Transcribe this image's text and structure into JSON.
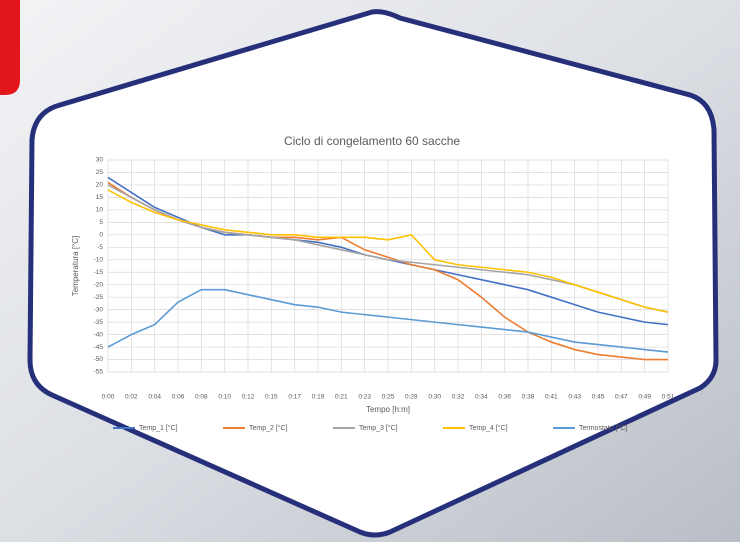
{
  "chart_data": {
    "type": "line",
    "title": "Ciclo di congelamento 60 sacche",
    "x_label": "Tempo [h:m]",
    "y_label": "Temperatura [°C]",
    "categories": [
      "0:00",
      "0:02",
      "0:04",
      "0:06",
      "0:08",
      "0:10",
      "0:12",
      "0:15",
      "0:17",
      "0:19",
      "0:21",
      "0:23",
      "0:25",
      "0:28",
      "0:30",
      "0:32",
      "0:34",
      "0:36",
      "0:38",
      "0:41",
      "0:43",
      "0:45",
      "0:47",
      "0:49",
      "0:51"
    ],
    "series": [
      {
        "name": "Temp_1 [°C]",
        "color": "#4472c4",
        "values": [
          23,
          17,
          11,
          7,
          3,
          0,
          0,
          -1,
          -2,
          -3,
          -5,
          -8,
          -10,
          -12,
          -14,
          -16,
          -18,
          -20,
          -22,
          -25,
          -28,
          -31,
          -33,
          -35,
          -36
        ]
      },
      {
        "name": "Temp_2 [°C]",
        "color": "#ed7d31",
        "values": [
          21,
          15,
          10,
          6,
          3,
          1,
          0,
          -1,
          -1,
          -2,
          -1,
          -6,
          -9,
          -12,
          -14,
          -18,
          -25,
          -33,
          -39,
          -43,
          -46,
          -48,
          -49,
          -50,
          -50
        ]
      },
      {
        "name": "Temp_3 [°C]",
        "color": "#a5a5a5",
        "values": [
          20,
          15,
          10,
          6,
          3,
          1,
          0,
          -1,
          -2,
          -4,
          -6,
          -8,
          -10,
          -11,
          -12,
          -13,
          -14,
          -15,
          -16,
          -18,
          -20,
          -23,
          -26,
          -29,
          -31
        ]
      },
      {
        "name": "Temp_4 [°C]",
        "color": "#ffc000",
        "values": [
          18,
          13,
          9,
          6,
          4,
          2,
          1,
          0,
          0,
          -1,
          -1,
          -1,
          -2,
          0,
          -10,
          -12,
          -13,
          -14,
          -15,
          -17,
          -20,
          -23,
          -26,
          -29,
          -31
        ]
      },
      {
        "name": "Termostato [°C]",
        "color": "#5b9bd5",
        "values": [
          -45,
          -40,
          -36,
          -27,
          -22,
          -22,
          -24,
          -26,
          -28,
          -29,
          -31,
          -32,
          -33,
          -34,
          -35,
          -36,
          -37,
          -38,
          -39,
          -41,
          -43,
          -44,
          -45,
          -46,
          -47
        ]
      }
    ],
    "ylim": [
      -55,
      30
    ],
    "yticks": [
      30,
      25,
      20,
      15,
      10,
      5,
      0,
      -5,
      -10,
      -15,
      -20,
      -25,
      -30,
      -35,
      -40,
      -45,
      -50,
      -55
    ],
    "grid": true,
    "legend": "bottom"
  }
}
